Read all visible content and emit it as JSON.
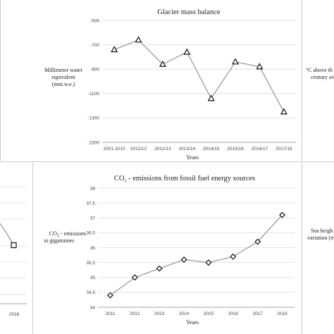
{
  "charts": [
    {
      "type": "line",
      "title": "Glacier mass balance",
      "ylabel": [
        "Millimeter water",
        "equivalent",
        "(mm.w.e.)"
      ],
      "xlabel": "Years",
      "categories": [
        "2001-2010",
        "2011/12",
        "2012/13",
        "2013/14",
        "2014/15",
        "2015/16",
        "2016/17",
        "2017/18"
      ],
      "values": [
        -740,
        -660,
        -860,
        -760,
        -1140,
        -840,
        -880,
        -1250
      ],
      "yticks": [
        "-500",
        "-700",
        "-900",
        "-1100",
        "-1300",
        "-1500"
      ],
      "ylim": [
        -1500,
        -500
      ],
      "marker": "triangle",
      "grid": true
    },
    {
      "type": "line",
      "title_main": "CO",
      "title_sub": "2",
      "title_rest": " - emissions from fossil fuel energy sources",
      "ylabel_main": "CO",
      "ylabel_sub": "2",
      "ylabel_rest": " - emissions",
      "ylabel_line2": "in gigatonnes",
      "xlabel": "Years",
      "categories": [
        "2011",
        "2012",
        "2013",
        "2014",
        "2015",
        "2016",
        "2017",
        "2018"
      ],
      "values": [
        34.4,
        35.0,
        35.3,
        35.6,
        35.5,
        35.7,
        36.2,
        37.1
      ],
      "yticks": [
        "38",
        "37,5",
        "37",
        "36,5",
        "36",
        "35,5",
        "35",
        "34,5",
        "34"
      ],
      "ylim": [
        34,
        38
      ],
      "marker": "diamond",
      "grid": true
    }
  ],
  "fragments": {
    "right_top_line1": "°C above th",
    "right_top_line2": "century av",
    "right_bottom_line1": "Sea heigh",
    "right_bottom_line2": "variation (m",
    "left_bottom_xtick": "2018"
  }
}
